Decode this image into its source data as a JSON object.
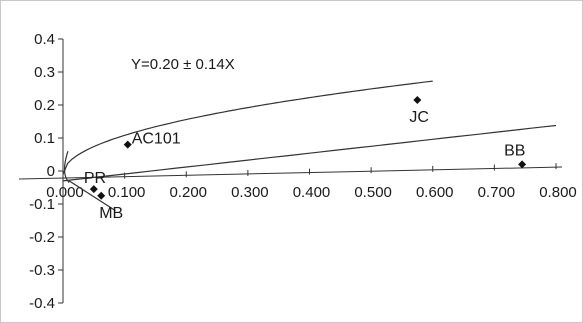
{
  "chart_data": {
    "type": "scatter",
    "title": "",
    "xlabel": "",
    "ylabel": "",
    "xlim": [
      0,
      0.8
    ],
    "ylim": [
      -0.4,
      0.4
    ],
    "x_ticks": [
      "0.000",
      "0.100",
      "0.200",
      "0.300",
      "0.400",
      "0.500",
      "0.600",
      "0.700",
      "0.800"
    ],
    "y_ticks": [
      "0.4",
      "0.3",
      "0.2",
      "0.1",
      "0",
      "-0.1",
      "-0.2",
      "-0.3",
      "-0.4"
    ],
    "grid": false,
    "legend": "none",
    "annotation": "Y=0.20 ± 0.14X",
    "points": [
      {
        "label": "AC101",
        "x": 0.105,
        "y": 0.08
      },
      {
        "label": "JC",
        "x": 0.575,
        "y": 0.215
      },
      {
        "label": "BB",
        "x": 0.745,
        "y": 0.02
      },
      {
        "label": "PR",
        "x": 0.05,
        "y": -0.055
      },
      {
        "label": "MB",
        "x": 0.062,
        "y": -0.075
      }
    ],
    "curves": {
      "upper": {
        "x_max": 0.6
      },
      "lower": {
        "x_max": 0.8
      }
    }
  }
}
